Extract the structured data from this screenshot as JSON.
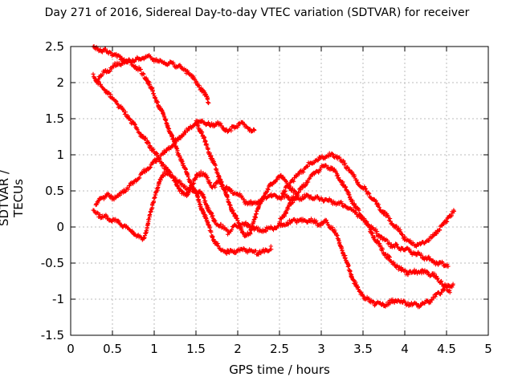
{
  "title": "Day 271 of 2016, Sidereal Day-to-day VTEC variation (SDTVAR) for receiver",
  "chart_data": {
    "type": "scatter",
    "marker": "plus",
    "marker_color": "#ff0000",
    "grid": true,
    "grid_color": "#bbbbbb",
    "border_color": "#000000",
    "xlabel": "GPS time / hours",
    "ylabel": "SDTVAR / TECUs",
    "xlim": [
      0,
      5
    ],
    "ylim": [
      -1.5,
      2.5
    ],
    "xticks": [
      0,
      0.5,
      1,
      1.5,
      2,
      2.5,
      3,
      3.5,
      4,
      4.5,
      5
    ],
    "xtick_labels": [
      "0",
      "0.5",
      "1",
      "1.5",
      "2",
      "2.5",
      "3",
      "3.5",
      "4",
      "4.5",
      "5"
    ],
    "yticks": [
      2.5,
      2,
      1.5,
      1,
      0.5,
      0,
      -0.5,
      -1,
      -1.5
    ],
    "ytick_labels": [
      "2.5",
      "2",
      "1.5",
      "1",
      "0.5",
      "0",
      "-0.5",
      "-1",
      "-1.5"
    ],
    "legend": "none",
    "sample_step_hours": 0.0095,
    "jitter_tecu": 0.05,
    "series": [
      {
        "name": "trace-1",
        "points": [
          [
            0.27,
            2.48
          ],
          [
            0.38,
            2.45
          ],
          [
            0.5,
            2.4
          ],
          [
            0.6,
            2.34
          ],
          [
            0.7,
            2.28
          ],
          [
            0.8,
            2.2
          ],
          [
            0.9,
            2.07
          ],
          [
            0.98,
            1.88
          ],
          [
            1.05,
            1.7
          ],
          [
            1.13,
            1.5
          ],
          [
            1.21,
            1.26
          ],
          [
            1.29,
            1.02
          ],
          [
            1.37,
            0.8
          ],
          [
            1.45,
            0.58
          ],
          [
            1.52,
            0.4
          ],
          [
            1.59,
            0.2
          ],
          [
            1.66,
            -0.02
          ],
          [
            1.73,
            -0.22
          ],
          [
            1.8,
            -0.31
          ],
          [
            1.88,
            -0.35
          ],
          [
            1.96,
            -0.34
          ],
          [
            2.05,
            -0.32
          ],
          [
            2.14,
            -0.33
          ],
          [
            2.23,
            -0.35
          ],
          [
            2.32,
            -0.34
          ],
          [
            2.4,
            -0.28
          ]
        ]
      },
      {
        "name": "trace-2",
        "points": [
          [
            0.3,
            2.02
          ],
          [
            0.36,
            2.1
          ],
          [
            0.44,
            2.17
          ],
          [
            0.52,
            2.23
          ],
          [
            0.62,
            2.28
          ],
          [
            0.72,
            2.31
          ],
          [
            0.82,
            2.33
          ],
          [
            0.92,
            2.35
          ],
          [
            1.0,
            2.33
          ],
          [
            1.08,
            2.28
          ],
          [
            1.16,
            2.27
          ],
          [
            1.24,
            2.25
          ],
          [
            1.32,
            2.21
          ],
          [
            1.4,
            2.15
          ],
          [
            1.47,
            2.06
          ],
          [
            1.53,
            1.96
          ],
          [
            1.58,
            1.88
          ],
          [
            1.63,
            1.79
          ],
          [
            1.65,
            1.73
          ]
        ]
      },
      {
        "name": "trace-3",
        "points": [
          [
            0.27,
            2.12
          ],
          [
            0.33,
            2.0
          ],
          [
            0.4,
            1.92
          ],
          [
            0.48,
            1.81
          ],
          [
            0.55,
            1.72
          ],
          [
            0.62,
            1.62
          ],
          [
            0.69,
            1.52
          ],
          [
            0.77,
            1.39
          ],
          [
            0.86,
            1.26
          ],
          [
            0.95,
            1.12
          ],
          [
            1.03,
            1.0
          ],
          [
            1.12,
            0.84
          ],
          [
            1.22,
            0.7
          ],
          [
            1.32,
            0.59
          ],
          [
            1.41,
            0.53
          ],
          [
            1.5,
            0.5
          ],
          [
            1.58,
            0.44
          ],
          [
            1.65,
            0.25
          ],
          [
            1.72,
            0.08
          ],
          [
            1.8,
            0.02
          ],
          [
            1.88,
            -0.07
          ],
          [
            1.96,
            0.0
          ],
          [
            2.04,
            0.04
          ],
          [
            2.12,
            0.02
          ],
          [
            2.2,
            -0.02
          ],
          [
            2.28,
            -0.05
          ],
          [
            2.36,
            -0.03
          ],
          [
            2.44,
            0.0
          ],
          [
            2.52,
            0.02
          ],
          [
            2.6,
            0.05
          ],
          [
            2.68,
            0.09
          ],
          [
            2.76,
            0.08
          ],
          [
            2.84,
            0.1
          ],
          [
            2.92,
            0.07
          ],
          [
            3.0,
            0.04
          ],
          [
            3.06,
            0.07
          ],
          [
            3.12,
            0.0
          ],
          [
            3.18,
            -0.1
          ],
          [
            3.24,
            -0.28
          ],
          [
            3.3,
            -0.48
          ],
          [
            3.37,
            -0.7
          ],
          [
            3.44,
            -0.86
          ],
          [
            3.51,
            -0.97
          ],
          [
            3.58,
            -1.03
          ],
          [
            3.66,
            -1.06
          ],
          [
            3.74,
            -1.08
          ],
          [
            3.82,
            -1.05
          ],
          [
            3.9,
            -1.01
          ],
          [
            3.98,
            -1.04
          ],
          [
            4.06,
            -1.07
          ],
          [
            4.14,
            -1.08
          ],
          [
            4.21,
            -1.07
          ],
          [
            4.29,
            -1.03
          ],
          [
            4.37,
            -0.96
          ],
          [
            4.45,
            -0.88
          ],
          [
            4.52,
            -0.82
          ],
          [
            4.58,
            -0.79
          ]
        ]
      },
      {
        "name": "trace-4",
        "points": [
          [
            0.3,
            0.3
          ],
          [
            0.36,
            0.4
          ],
          [
            0.43,
            0.44
          ],
          [
            0.5,
            0.4
          ],
          [
            0.57,
            0.43
          ],
          [
            0.64,
            0.5
          ],
          [
            0.72,
            0.58
          ],
          [
            0.8,
            0.67
          ],
          [
            0.88,
            0.77
          ],
          [
            0.96,
            0.86
          ],
          [
            1.04,
            0.94
          ],
          [
            1.12,
            1.03
          ],
          [
            1.2,
            1.12
          ],
          [
            1.28,
            1.21
          ],
          [
            1.36,
            1.3
          ],
          [
            1.44,
            1.38
          ],
          [
            1.51,
            1.44
          ],
          [
            1.57,
            1.47
          ],
          [
            1.63,
            1.44
          ],
          [
            1.7,
            1.4
          ],
          [
            1.76,
            1.44
          ],
          [
            1.83,
            1.37
          ],
          [
            1.9,
            1.33
          ],
          [
            1.96,
            1.38
          ],
          [
            2.02,
            1.44
          ],
          [
            2.08,
            1.41
          ],
          [
            2.14,
            1.35
          ],
          [
            2.2,
            1.31
          ]
        ]
      },
      {
        "name": "trace-5",
        "points": [
          [
            0.27,
            0.22
          ],
          [
            0.34,
            0.17
          ],
          [
            0.42,
            0.13
          ],
          [
            0.5,
            0.1
          ],
          [
            0.58,
            0.06
          ],
          [
            0.66,
            0.0
          ],
          [
            0.74,
            -0.07
          ],
          [
            0.8,
            -0.13
          ],
          [
            0.86,
            -0.17
          ],
          [
            0.9,
            -0.08
          ],
          [
            0.94,
            0.12
          ],
          [
            0.98,
            0.3
          ],
          [
            1.02,
            0.48
          ],
          [
            1.06,
            0.62
          ],
          [
            1.11,
            0.73
          ],
          [
            1.16,
            0.77
          ],
          [
            1.21,
            0.71
          ],
          [
            1.27,
            0.59
          ],
          [
            1.33,
            0.47
          ],
          [
            1.39,
            0.44
          ],
          [
            1.45,
            0.57
          ],
          [
            1.51,
            0.7
          ],
          [
            1.56,
            0.76
          ],
          [
            1.61,
            0.71
          ],
          [
            1.67,
            0.6
          ],
          [
            1.72,
            0.56
          ],
          [
            1.77,
            0.63
          ],
          [
            1.84,
            0.55
          ],
          [
            1.92,
            0.5
          ],
          [
            2.0,
            0.46
          ],
          [
            2.08,
            0.36
          ],
          [
            2.16,
            0.32
          ],
          [
            2.24,
            0.34
          ],
          [
            2.32,
            0.4
          ],
          [
            2.4,
            0.44
          ],
          [
            2.48,
            0.43
          ],
          [
            2.56,
            0.42
          ],
          [
            2.64,
            0.4
          ],
          [
            2.72,
            0.39
          ],
          [
            2.8,
            0.42
          ],
          [
            2.88,
            0.42
          ],
          [
            2.96,
            0.39
          ],
          [
            3.04,
            0.38
          ],
          [
            3.12,
            0.35
          ],
          [
            3.2,
            0.33
          ],
          [
            3.28,
            0.3
          ],
          [
            3.36,
            0.25
          ],
          [
            3.44,
            0.17
          ],
          [
            3.52,
            0.08
          ],
          [
            3.6,
            0.0
          ],
          [
            3.68,
            -0.1
          ],
          [
            3.76,
            -0.18
          ],
          [
            3.84,
            -0.25
          ],
          [
            3.92,
            -0.28
          ],
          [
            4.0,
            -0.31
          ],
          [
            4.08,
            -0.35
          ],
          [
            4.16,
            -0.38
          ],
          [
            4.24,
            -0.42
          ],
          [
            4.32,
            -0.46
          ],
          [
            4.4,
            -0.5
          ],
          [
            4.47,
            -0.52
          ],
          [
            4.52,
            -0.53
          ]
        ]
      },
      {
        "name": "trace-6",
        "points": [
          [
            1.5,
            1.47
          ],
          [
            1.56,
            1.32
          ],
          [
            1.62,
            1.15
          ],
          [
            1.68,
            0.97
          ],
          [
            1.74,
            0.8
          ],
          [
            1.8,
            0.63
          ],
          [
            1.86,
            0.45
          ],
          [
            1.92,
            0.28
          ],
          [
            1.98,
            0.12
          ],
          [
            2.04,
            -0.02
          ],
          [
            2.1,
            -0.13
          ],
          [
            2.15,
            -0.09
          ],
          [
            2.2,
            0.12
          ],
          [
            2.26,
            0.3
          ],
          [
            2.33,
            0.47
          ],
          [
            2.4,
            0.58
          ],
          [
            2.46,
            0.66
          ],
          [
            2.52,
            0.71
          ],
          [
            2.58,
            0.62
          ],
          [
            2.64,
            0.52
          ],
          [
            2.7,
            0.45
          ]
        ]
      },
      {
        "name": "trace-7",
        "points": [
          [
            2.5,
            0.08
          ],
          [
            2.58,
            0.22
          ],
          [
            2.66,
            0.36
          ],
          [
            2.74,
            0.5
          ],
          [
            2.82,
            0.62
          ],
          [
            2.9,
            0.72
          ],
          [
            2.98,
            0.8
          ],
          [
            3.05,
            0.85
          ],
          [
            3.12,
            0.82
          ],
          [
            3.19,
            0.72
          ],
          [
            3.26,
            0.6
          ],
          [
            3.33,
            0.45
          ],
          [
            3.4,
            0.3
          ],
          [
            3.47,
            0.17
          ],
          [
            3.54,
            0.05
          ],
          [
            3.61,
            -0.1
          ],
          [
            3.68,
            -0.23
          ],
          [
            3.75,
            -0.35
          ],
          [
            3.82,
            -0.45
          ],
          [
            3.89,
            -0.53
          ],
          [
            3.96,
            -0.6
          ],
          [
            4.04,
            -0.63
          ],
          [
            4.12,
            -0.62
          ],
          [
            4.2,
            -0.62
          ],
          [
            4.28,
            -0.64
          ],
          [
            4.36,
            -0.68
          ],
          [
            4.43,
            -0.75
          ],
          [
            4.49,
            -0.84
          ],
          [
            4.54,
            -0.91
          ]
        ]
      },
      {
        "name": "trace-8",
        "points": [
          [
            2.52,
            0.42
          ],
          [
            2.58,
            0.54
          ],
          [
            2.66,
            0.65
          ],
          [
            2.74,
            0.75
          ],
          [
            2.82,
            0.83
          ],
          [
            2.9,
            0.9
          ],
          [
            2.98,
            0.95
          ],
          [
            3.06,
            0.99
          ],
          [
            3.13,
            1.0
          ],
          [
            3.2,
            0.97
          ],
          [
            3.28,
            0.87
          ],
          [
            3.36,
            0.75
          ],
          [
            3.44,
            0.62
          ],
          [
            3.52,
            0.52
          ],
          [
            3.6,
            0.41
          ],
          [
            3.68,
            0.3
          ],
          [
            3.76,
            0.18
          ],
          [
            3.84,
            0.07
          ],
          [
            3.92,
            -0.04
          ],
          [
            4.0,
            -0.15
          ],
          [
            4.07,
            -0.22
          ],
          [
            4.14,
            -0.25
          ],
          [
            4.21,
            -0.24
          ],
          [
            4.28,
            -0.19
          ],
          [
            4.35,
            -0.11
          ],
          [
            4.42,
            -0.02
          ],
          [
            4.49,
            0.08
          ],
          [
            4.55,
            0.17
          ],
          [
            4.59,
            0.22
          ]
        ]
      }
    ]
  }
}
